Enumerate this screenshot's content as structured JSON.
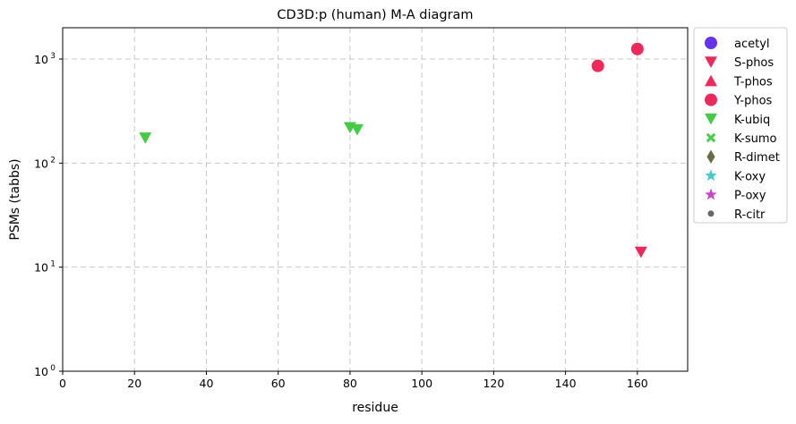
{
  "chart_data": {
    "type": "scatter",
    "title": "CD3D:p (human) M-A diagram",
    "xlabel": "residue",
    "ylabel": "PSMs (tabbs)",
    "xlim": [
      0,
      174
    ],
    "ylim": [
      1,
      2000
    ],
    "yscale": "log",
    "grid": true,
    "legend_position": "outside-right",
    "x_ticks": [
      "0",
      "20",
      "40",
      "60",
      "80",
      "100",
      "120",
      "140",
      "160"
    ],
    "y_ticks": [
      "10",
      "10",
      "10",
      "10"
    ],
    "y_tick_exponents": [
      "0",
      "1",
      "2",
      "3"
    ],
    "series": [
      {
        "name": "acetyl",
        "marker": "circle",
        "color": "#6633ee",
        "points": []
      },
      {
        "name": "S-phos",
        "marker": "triangle-down",
        "color": "#f0285a",
        "points": [
          {
            "x": 161,
            "y": 14
          }
        ]
      },
      {
        "name": "T-phos",
        "marker": "triangle-up",
        "color": "#f0285a",
        "points": []
      },
      {
        "name": "Y-phos",
        "marker": "circle",
        "color": "#f0285a",
        "points": [
          {
            "x": 149,
            "y": 860
          },
          {
            "x": 160,
            "y": 1250
          }
        ]
      },
      {
        "name": "K-ubiq",
        "marker": "triangle-down",
        "color": "#44cc44",
        "points": [
          {
            "x": 23,
            "y": 175
          },
          {
            "x": 80,
            "y": 220
          },
          {
            "x": 82,
            "y": 210
          }
        ]
      },
      {
        "name": "K-sumo",
        "marker": "x",
        "color": "#44cc44",
        "points": []
      },
      {
        "name": "R-dimet",
        "marker": "diamond",
        "color": "#6b6b45",
        "points": []
      },
      {
        "name": "K-oxy",
        "marker": "star",
        "color": "#44cccc",
        "points": []
      },
      {
        "name": "P-oxy",
        "marker": "star",
        "color": "#cc44cc",
        "points": []
      },
      {
        "name": "R-citr",
        "marker": "dot",
        "color": "#666666",
        "points": []
      }
    ]
  }
}
